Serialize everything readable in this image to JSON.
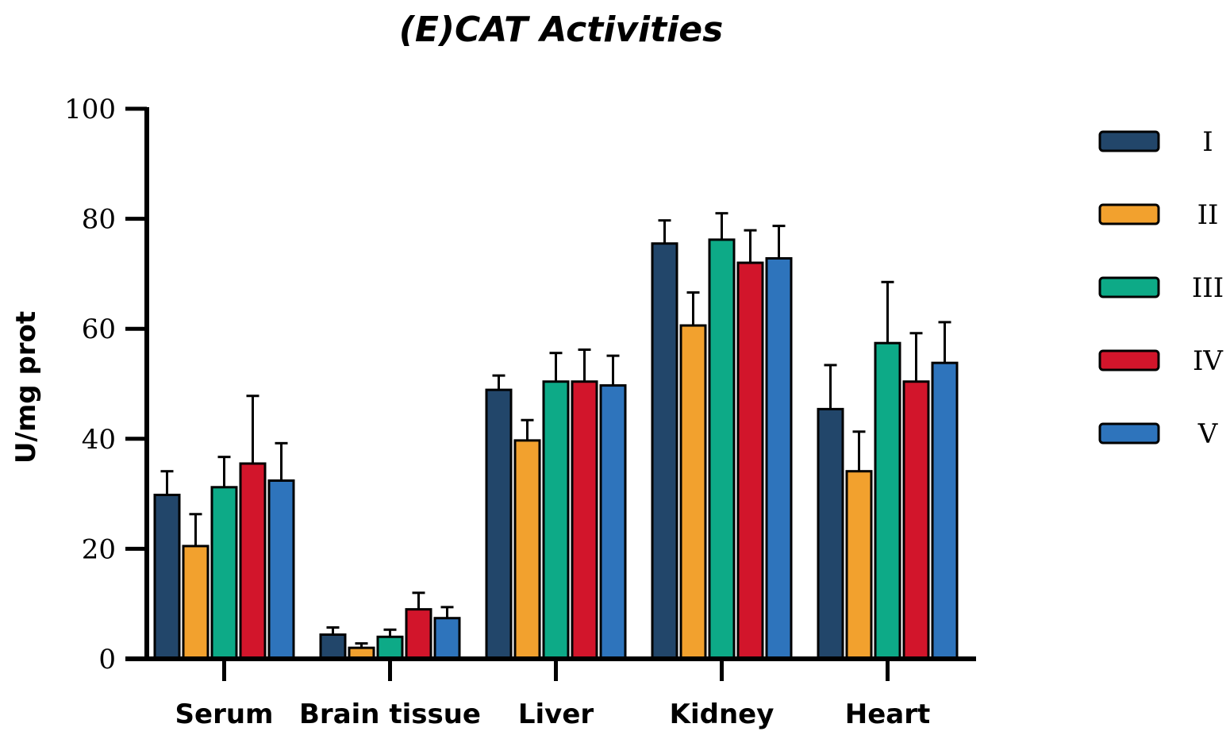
{
  "chart_data": {
    "type": "bar",
    "title": "(E)CAT Activities",
    "xlabel": "",
    "ylabel": "U/mg prot",
    "ylim": [
      0,
      100
    ],
    "yticks": [
      0,
      20,
      40,
      60,
      80,
      100
    ],
    "categories": [
      "Serum",
      "Brain tissue",
      "Liver",
      "Kidney",
      "Heart"
    ],
    "series": [
      {
        "name": "I",
        "color": "#22466a",
        "values": [
          29.8,
          4.4,
          48.9,
          75.5,
          45.4
        ],
        "errors": [
          4.3,
          1.3,
          2.6,
          4.2,
          8.0
        ]
      },
      {
        "name": "II",
        "color": "#f2a12e",
        "values": [
          20.5,
          2.0,
          39.7,
          60.6,
          34.1
        ],
        "errors": [
          5.8,
          0.8,
          3.7,
          6.0,
          7.2
        ]
      },
      {
        "name": "III",
        "color": "#0daa87",
        "values": [
          31.2,
          4.0,
          50.4,
          76.2,
          57.4
        ],
        "errors": [
          5.5,
          1.3,
          5.2,
          4.8,
          11.1
        ]
      },
      {
        "name": "IV",
        "color": "#d2152b",
        "values": [
          35.5,
          9.0,
          50.4,
          72.0,
          50.4
        ],
        "errors": [
          12.3,
          3.0,
          5.8,
          5.9,
          8.8
        ]
      },
      {
        "name": "V",
        "color": "#2e74bc",
        "values": [
          32.4,
          7.4,
          49.7,
          72.8,
          53.8
        ],
        "errors": [
          6.8,
          2.0,
          5.4,
          5.9,
          7.4
        ]
      }
    ],
    "legend_position": "right"
  }
}
